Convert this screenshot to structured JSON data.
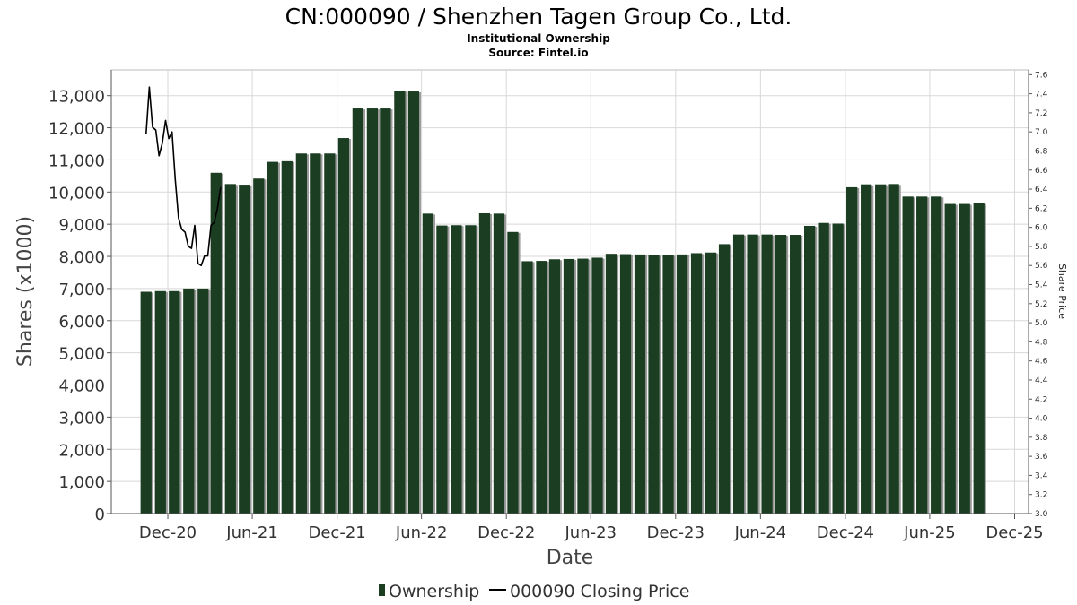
{
  "chart_data": {
    "type": "bar",
    "title": "CN:000090 / Shenzhen Tagen Group Co., Ltd.",
    "subtitle": "Institutional Ownership",
    "source": "Source: Fintel.io",
    "xlabel": "Date",
    "ylabel": "Shares (x1000)",
    "y2label": "Share Price",
    "ylim": [
      0,
      13800
    ],
    "y2lim": [
      3.0,
      7.65
    ],
    "xlim": [
      "2020-08-01",
      "2025-12-31"
    ],
    "y_ticks": [
      "0",
      "1,000",
      "2,000",
      "3,000",
      "4,000",
      "5,000",
      "6,000",
      "7,000",
      "8,000",
      "9,000",
      "10,000",
      "11,000",
      "12,000",
      "13,000"
    ],
    "y2_ticks": [
      "3.0",
      "3.2",
      "3.4",
      "3.6",
      "3.8",
      "4.0",
      "4.2",
      "4.4",
      "4.6",
      "4.8",
      "5.0",
      "5.2",
      "5.4",
      "5.6",
      "5.8",
      "6.0",
      "6.2",
      "6.4",
      "6.6",
      "6.8",
      "7.0",
      "7.2",
      "7.4",
      "7.6"
    ],
    "x_ticks": [
      {
        "label": "Dec-20",
        "date": "2020-12-01"
      },
      {
        "label": "Jun-21",
        "date": "2021-06-01"
      },
      {
        "label": "Dec-21",
        "date": "2021-12-01"
      },
      {
        "label": "Jun-22",
        "date": "2022-06-01"
      },
      {
        "label": "Dec-22",
        "date": "2022-12-01"
      },
      {
        "label": "Jun-23",
        "date": "2023-06-01"
      },
      {
        "label": "Dec-23",
        "date": "2023-12-01"
      },
      {
        "label": "Jun-24",
        "date": "2024-06-01"
      },
      {
        "label": "Dec-24",
        "date": "2024-12-01"
      },
      {
        "label": "Jun-25",
        "date": "2025-06-01"
      },
      {
        "label": "Dec-25",
        "date": "2025-12-01"
      }
    ],
    "legend": {
      "placement": "bottom",
      "ownership_label": "Ownership",
      "price_label": "000090 Closing Price"
    },
    "colors": {
      "bar": "#1b3d22",
      "bar_side": "#9a9a9a",
      "line": "#000000",
      "grid": "#d8d8d8"
    },
    "grid": true,
    "series": [
      {
        "name": "Ownership",
        "points": [
          {
            "x": "2020-10-15",
            "y": 6900
          },
          {
            "x": "2020-11-15",
            "y": 6920
          },
          {
            "x": "2020-12-15",
            "y": 6920
          },
          {
            "x": "2021-01-15",
            "y": 7000
          },
          {
            "x": "2021-02-15",
            "y": 7000
          },
          {
            "x": "2021-03-15",
            "y": 10600
          },
          {
            "x": "2021-04-15",
            "y": 10250
          },
          {
            "x": "2021-05-15",
            "y": 10230
          },
          {
            "x": "2021-06-15",
            "y": 10420
          },
          {
            "x": "2021-07-15",
            "y": 10940
          },
          {
            "x": "2021-08-15",
            "y": 10960
          },
          {
            "x": "2021-09-15",
            "y": 11200
          },
          {
            "x": "2021-10-15",
            "y": 11200
          },
          {
            "x": "2021-11-15",
            "y": 11200
          },
          {
            "x": "2021-12-15",
            "y": 11680
          },
          {
            "x": "2022-01-15",
            "y": 12600
          },
          {
            "x": "2022-02-15",
            "y": 12600
          },
          {
            "x": "2022-03-15",
            "y": 12600
          },
          {
            "x": "2022-04-15",
            "y": 13150
          },
          {
            "x": "2022-05-15",
            "y": 13130
          },
          {
            "x": "2022-06-15",
            "y": 9330
          },
          {
            "x": "2022-07-15",
            "y": 8960
          },
          {
            "x": "2022-08-15",
            "y": 8970
          },
          {
            "x": "2022-09-15",
            "y": 8970
          },
          {
            "x": "2022-10-15",
            "y": 9340
          },
          {
            "x": "2022-11-15",
            "y": 9330
          },
          {
            "x": "2022-12-15",
            "y": 8760
          },
          {
            "x": "2023-01-15",
            "y": 7850
          },
          {
            "x": "2023-02-15",
            "y": 7860
          },
          {
            "x": "2023-03-15",
            "y": 7910
          },
          {
            "x": "2023-04-15",
            "y": 7920
          },
          {
            "x": "2023-05-15",
            "y": 7930
          },
          {
            "x": "2023-06-15",
            "y": 7960
          },
          {
            "x": "2023-07-15",
            "y": 8080
          },
          {
            "x": "2023-08-15",
            "y": 8070
          },
          {
            "x": "2023-09-15",
            "y": 8060
          },
          {
            "x": "2023-10-15",
            "y": 8050
          },
          {
            "x": "2023-11-15",
            "y": 8050
          },
          {
            "x": "2023-12-15",
            "y": 8060
          },
          {
            "x": "2024-01-15",
            "y": 8100
          },
          {
            "x": "2024-02-15",
            "y": 8120
          },
          {
            "x": "2024-03-15",
            "y": 8380
          },
          {
            "x": "2024-04-15",
            "y": 8680
          },
          {
            "x": "2024-05-15",
            "y": 8680
          },
          {
            "x": "2024-06-15",
            "y": 8680
          },
          {
            "x": "2024-07-15",
            "y": 8670
          },
          {
            "x": "2024-08-15",
            "y": 8670
          },
          {
            "x": "2024-09-15",
            "y": 8950
          },
          {
            "x": "2024-10-15",
            "y": 9040
          },
          {
            "x": "2024-11-15",
            "y": 9020
          },
          {
            "x": "2024-12-15",
            "y": 10150
          },
          {
            "x": "2025-01-15",
            "y": 10240
          },
          {
            "x": "2025-02-15",
            "y": 10240
          },
          {
            "x": "2025-03-15",
            "y": 10250
          },
          {
            "x": "2025-04-15",
            "y": 9860
          },
          {
            "x": "2025-05-15",
            "y": 9860
          },
          {
            "x": "2025-06-15",
            "y": 9860
          },
          {
            "x": "2025-07-15",
            "y": 9630
          },
          {
            "x": "2025-08-15",
            "y": 9630
          },
          {
            "x": "2025-09-15",
            "y": 9650
          }
        ]
      },
      {
        "name": "000090 Closing Price",
        "axis": "right",
        "points": [
          {
            "x": "2020-10-15",
            "y": 6.98
          },
          {
            "x": "2020-10-22",
            "y": 7.47
          },
          {
            "x": "2020-10-29",
            "y": 7.05
          },
          {
            "x": "2020-11-05",
            "y": 7.02
          },
          {
            "x": "2020-11-12",
            "y": 6.75
          },
          {
            "x": "2020-11-19",
            "y": 6.88
          },
          {
            "x": "2020-11-26",
            "y": 7.12
          },
          {
            "x": "2020-12-03",
            "y": 6.93
          },
          {
            "x": "2020-12-10",
            "y": 7.0
          },
          {
            "x": "2020-12-17",
            "y": 6.5
          },
          {
            "x": "2020-12-24",
            "y": 6.1
          },
          {
            "x": "2020-12-31",
            "y": 5.98
          },
          {
            "x": "2021-01-07",
            "y": 5.95
          },
          {
            "x": "2021-01-14",
            "y": 5.8
          },
          {
            "x": "2021-01-21",
            "y": 5.78
          },
          {
            "x": "2021-01-28",
            "y": 6.02
          },
          {
            "x": "2021-02-04",
            "y": 5.62
          },
          {
            "x": "2021-02-11",
            "y": 5.6
          },
          {
            "x": "2021-02-18",
            "y": 5.7
          },
          {
            "x": "2021-02-25",
            "y": 5.7
          },
          {
            "x": "2021-03-04",
            "y": 6.02
          },
          {
            "x": "2021-03-11",
            "y": 6.05
          },
          {
            "x": "2021-03-18",
            "y": 6.2
          },
          {
            "x": "2021-03-25",
            "y": 6.42
          }
        ]
      }
    ]
  }
}
